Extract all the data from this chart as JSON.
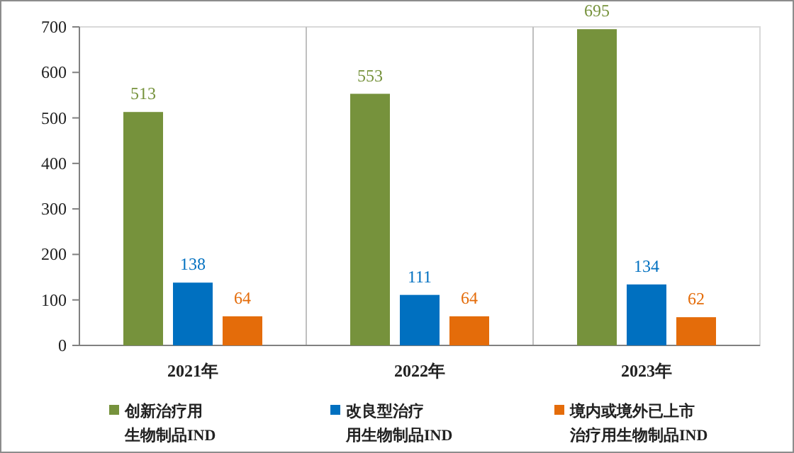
{
  "chart_data": {
    "type": "bar",
    "categories": [
      "2021年",
      "2022年",
      "2023年"
    ],
    "series": [
      {
        "name": "创新治疗用生物制品IND",
        "color": "#76923c",
        "values": [
          513,
          553,
          695
        ]
      },
      {
        "name": "改良型治疗用生物制品IND",
        "color": "#0070c0",
        "values": [
          138,
          111,
          134
        ]
      },
      {
        "name": "境内或境外已上市治疗用生物制品IND",
        "color": "#e46c0a",
        "values": [
          64,
          64,
          62
        ]
      }
    ],
    "ylim": [
      0,
      700
    ],
    "yticks": [
      0,
      100,
      200,
      300,
      400,
      500,
      600,
      700
    ],
    "grid": "x",
    "data_labels": true,
    "legend": "bottom"
  }
}
